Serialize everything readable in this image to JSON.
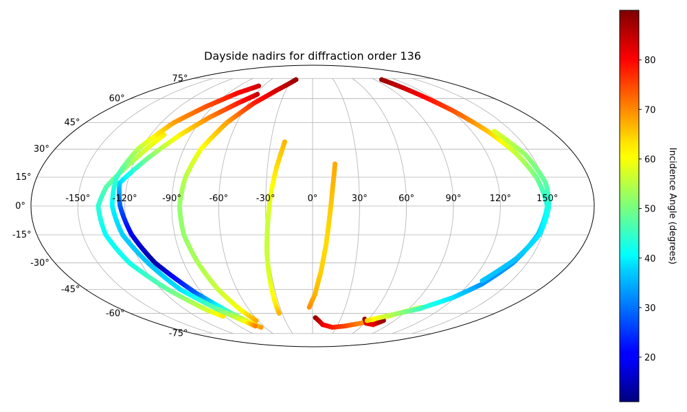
{
  "chart_data": {
    "type": "scatter",
    "projection": "mollweide",
    "title": "Dayside nadirs for diffraction order 136",
    "colorbar_label": "Incidence Angle (degrees)",
    "colormap": "jet",
    "color_range": [
      11,
      90
    ],
    "colorbar_ticks": [
      20,
      30,
      40,
      50,
      60,
      70,
      80
    ],
    "lon_ticks": [
      "-150°",
      "-120°",
      "-90°",
      "-60°",
      "-30°",
      "0°",
      "30°",
      "60°",
      "90°",
      "120°",
      "150°"
    ],
    "lat_ticks": [
      {
        "lat": 75,
        "label": "75°"
      },
      {
        "lat": 60,
        "label": "60°"
      },
      {
        "lat": 45,
        "label": "45°"
      },
      {
        "lat": 30,
        "label": "30°"
      },
      {
        "lat": 15,
        "label": "15°"
      },
      {
        "lat": 0,
        "label": "0°"
      },
      {
        "lat": -15,
        "label": "-15°"
      },
      {
        "lat": -30,
        "label": "-30°"
      },
      {
        "lat": -45,
        "label": "-45°"
      },
      {
        "lat": -60,
        "label": "-60°"
      },
      {
        "lat": -75,
        "label": "-75°"
      }
    ],
    "grid": true,
    "series": [
      {
        "points": [
          [
            -110,
            38,
            62
          ],
          [
            -120,
            25,
            55
          ],
          [
            -133,
            10,
            47
          ],
          [
            -137,
            0,
            44
          ],
          [
            -135,
            -15,
            41
          ],
          [
            -128,
            -30,
            42
          ],
          [
            -115,
            -45,
            48
          ],
          [
            -100,
            -58,
            57
          ],
          [
            -92,
            -62,
            62
          ]
        ]
      },
      {
        "points": [
          [
            -58,
            63,
            85
          ],
          [
            -70,
            57,
            78
          ],
          [
            -85,
            48,
            70
          ],
          [
            -98,
            38,
            62
          ],
          [
            -112,
            25,
            50
          ],
          [
            -125,
            12,
            38
          ],
          [
            -123,
            0,
            28
          ],
          [
            -118,
            -15,
            20
          ],
          [
            -110,
            -30,
            14
          ],
          [
            -95,
            -47,
            28
          ],
          [
            -80,
            -60,
            48
          ],
          [
            -70,
            -67,
            60
          ],
          [
            -65,
            -70,
            68
          ]
        ]
      },
      {
        "points": [
          [
            -66,
            69,
            84
          ],
          [
            -80,
            64,
            80
          ],
          [
            -96,
            55,
            74
          ],
          [
            -110,
            45,
            68
          ],
          [
            -122,
            30,
            55
          ],
          [
            -128,
            15,
            45
          ],
          [
            -128,
            0,
            40
          ],
          [
            -124,
            -15,
            37
          ],
          [
            -115,
            -30,
            36
          ],
          [
            -105,
            -45,
            38
          ],
          [
            -90,
            -57,
            48
          ],
          [
            -75,
            -66,
            60
          ],
          [
            -70,
            -69,
            70
          ]
        ]
      },
      {
        "points": [
          [
            -24,
            74,
            88
          ],
          [
            -40,
            66,
            84
          ],
          [
            -55,
            57,
            78
          ],
          [
            -68,
            45,
            68
          ],
          [
            -78,
            30,
            60
          ],
          [
            -83,
            15,
            55
          ],
          [
            -85,
            0,
            52
          ],
          [
            -84,
            -15,
            52
          ],
          [
            -80,
            -30,
            54
          ],
          [
            -75,
            -45,
            56
          ],
          [
            -68,
            -58,
            60
          ],
          [
            -62,
            -65,
            67
          ]
        ]
      },
      {
        "points": [
          [
            -20,
            34,
            66
          ],
          [
            -24,
            20,
            63
          ],
          [
            -27,
            5,
            59
          ],
          [
            -29,
            -10,
            56
          ],
          [
            -31,
            -25,
            56
          ],
          [
            -32,
            -40,
            58
          ],
          [
            -33,
            -55,
            62
          ],
          [
            -33,
            -60,
            66
          ]
        ]
      },
      {
        "points": [
          [
            15,
            22,
            67
          ],
          [
            13,
            10,
            66
          ],
          [
            11,
            -5,
            64
          ],
          [
            9,
            -20,
            63
          ],
          [
            6,
            -35,
            64
          ],
          [
            2,
            -48,
            66
          ],
          [
            -3,
            -56,
            69
          ]
        ]
      },
      {
        "points": [
          [
            3,
            -63,
            88
          ],
          [
            12,
            -68,
            82
          ],
          [
            25,
            -70,
            78
          ],
          [
            40,
            -69,
            75
          ],
          [
            55,
            -67,
            70
          ],
          [
            70,
            -64,
            64
          ],
          [
            85,
            -60,
            58
          ],
          [
            100,
            -56,
            55
          ]
        ]
      },
      {
        "points": [
          [
            56,
            -64,
            88
          ],
          [
            62,
            -67,
            82
          ],
          [
            72,
            -68,
            82
          ],
          [
            78,
            -65,
            88
          ]
        ]
      },
      {
        "points": [
          [
            100,
            74,
            88
          ],
          [
            110,
            64,
            82
          ],
          [
            122,
            52,
            74
          ],
          [
            132,
            40,
            65
          ],
          [
            140,
            28,
            56
          ],
          [
            146,
            15,
            50
          ],
          [
            150,
            0,
            42
          ],
          [
            147,
            -15,
            36
          ],
          [
            140,
            -30,
            32
          ],
          [
            130,
            -42,
            32
          ],
          [
            118,
            -50,
            38
          ],
          [
            100,
            -57,
            45
          ],
          [
            85,
            -60,
            52
          ],
          [
            70,
            -63,
            58
          ],
          [
            60,
            -65,
            63
          ]
        ]
      },
      {
        "points": [
          [
            137,
            40,
            58
          ],
          [
            146,
            27,
            52
          ],
          [
            151,
            12,
            48
          ],
          [
            151,
            0,
            43
          ],
          [
            148,
            -15,
            39
          ],
          [
            140,
            -28,
            36
          ],
          [
            128,
            -40,
            36
          ]
        ]
      }
    ]
  }
}
